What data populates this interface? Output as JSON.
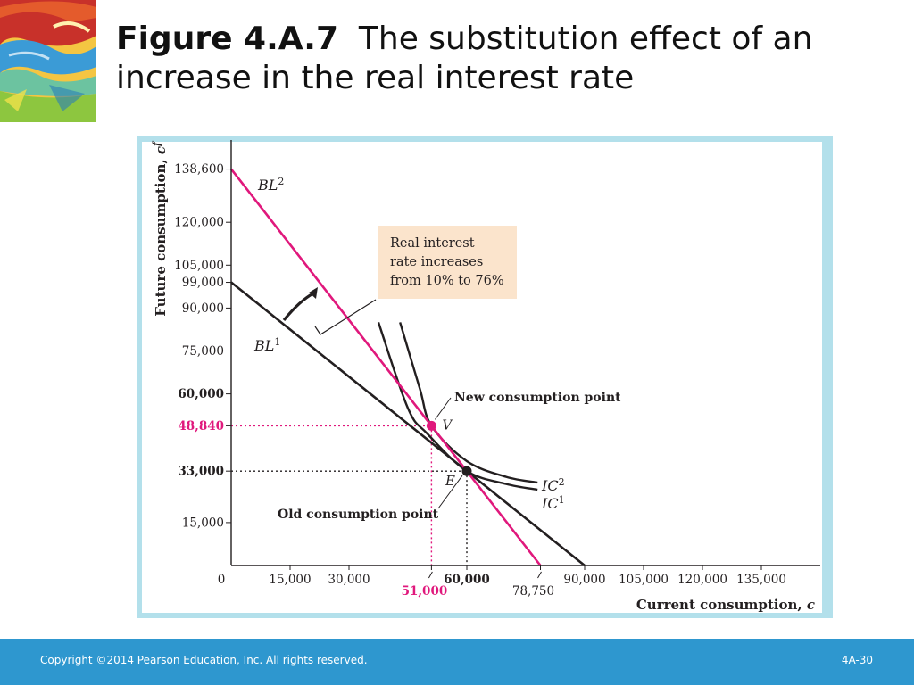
{
  "slide": {
    "title_bold": "Figure 4.A.7",
    "title_rest": "The substitution effect of an increase in the real interest rate",
    "copyright": "Copyright ©2014 Pearson Education, Inc. All rights reserved.",
    "page_number": "4A-30"
  },
  "chart_data": {
    "type": "line",
    "xlabel": "Current consumption, c",
    "ylabel": "Future consumption, c",
    "ylabel_sup": "f",
    "xlim": [
      0,
      150000
    ],
    "ylim": [
      0,
      150000
    ],
    "x_ticks": [
      "0",
      "15,000",
      "30,000",
      "51,000",
      "60,000",
      "78,750",
      "90,000",
      "105,000",
      "120,000",
      "135,000"
    ],
    "x_tick_values": [
      0,
      15000,
      30000,
      51000,
      60000,
      78750,
      90000,
      105000,
      120000,
      135000
    ],
    "y_ticks": [
      "15,000",
      "33,000",
      "48,840",
      "60,000",
      "75,000",
      "90,000",
      "99,000",
      "105,000",
      "120,000",
      "138,600"
    ],
    "y_tick_values": [
      15000,
      33000,
      48840,
      60000,
      75000,
      90000,
      99000,
      105000,
      120000,
      138600
    ],
    "highlight_ticks": [
      "48,840",
      "51,000"
    ],
    "bold_ticks": [
      "33,000",
      "60,000"
    ],
    "budget_lines": [
      {
        "name": "BL",
        "sup": "1",
        "x_intercept": 90000,
        "y_intercept": 99000,
        "color": "#231f20"
      },
      {
        "name": "BL",
        "sup": "2",
        "x_intercept": 78750,
        "y_intercept": 138600,
        "color": "#e0187c"
      }
    ],
    "indifference_curves": [
      {
        "name": "IC",
        "sup": "1",
        "points": [
          [
            37500,
            85000
          ],
          [
            45000,
            55000
          ],
          [
            50000,
            46000
          ],
          [
            60000,
            33000
          ],
          [
            70000,
            28500
          ],
          [
            78000,
            26500
          ]
        ]
      },
      {
        "name": "IC",
        "sup": "2",
        "points": [
          [
            43000,
            85000
          ],
          [
            48000,
            62000
          ],
          [
            51000,
            48840
          ],
          [
            60000,
            36500
          ],
          [
            70000,
            31000
          ],
          [
            78000,
            29000
          ]
        ]
      }
    ],
    "points": [
      {
        "label": "V",
        "x": 51000,
        "y": 48840,
        "color": "#e0187c",
        "annotation": "New consumption point"
      },
      {
        "label": "E",
        "x": 60000,
        "y": 33000,
        "color": "#231f20",
        "annotation": "Old consumption point"
      }
    ],
    "callout": "Real interest rate increases from 10% to 76%",
    "colors": {
      "bl1": "#231f20",
      "bl2": "#e0187c",
      "panel": "#b3e0eb",
      "callout_bg": "#fbe4cc"
    }
  }
}
